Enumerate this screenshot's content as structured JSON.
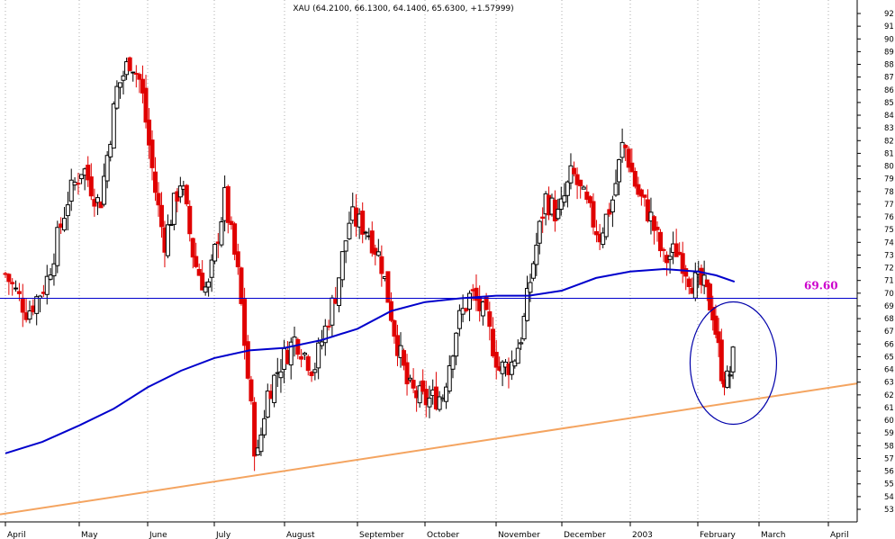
{
  "chart_data": {
    "type": "candlestick",
    "title": "XAU (64.2100, 66.1300, 64.1400, 65.6300, +1.57999)",
    "ylim": [
      52,
      93
    ],
    "y_ticks": [
      53,
      54,
      55,
      56,
      57,
      58,
      59,
      60,
      61,
      62,
      63,
      64,
      65,
      66,
      67,
      68,
      69,
      70,
      71,
      72,
      73,
      74,
      75,
      76,
      77,
      78,
      79,
      80,
      81,
      82,
      83,
      84,
      85,
      86,
      87,
      88,
      89,
      90,
      91,
      92
    ],
    "x_labels": [
      "April",
      "May",
      "June",
      "July",
      "August",
      "September",
      "October",
      "November",
      "December",
      "2003",
      "February",
      "March",
      "April"
    ],
    "grid": true,
    "colors": {
      "up_candle": "#000000",
      "down_candle": "#e00000",
      "moving_average": "#0000cc",
      "horizontal_line": "#0000cc",
      "trendline": "#f4a460",
      "level_label": "#cc00cc",
      "ellipse": "#0000aa",
      "grid": "#999999"
    },
    "horizontal_line": {
      "value": 69.6,
      "label": "69.60"
    },
    "trendline": {
      "from": {
        "x": "April",
        "y": 52.6
      },
      "to": {
        "x": "April",
        "y": 62.9
      }
    },
    "price_path": [
      {
        "m": 0,
        "v": 71.5
      },
      {
        "m": 0.3,
        "v": 68.5
      },
      {
        "m": 0.55,
        "v": 70.8
      },
      {
        "m": 0.85,
        "v": 77.5
      },
      {
        "m": 1.05,
        "v": 80.0
      },
      {
        "m": 1.3,
        "v": 76.8
      },
      {
        "m": 1.55,
        "v": 86.0
      },
      {
        "m": 1.75,
        "v": 88.5
      },
      {
        "m": 1.9,
        "v": 86.5
      },
      {
        "m": 2.1,
        "v": 78.5
      },
      {
        "m": 2.25,
        "v": 74.0
      },
      {
        "m": 2.5,
        "v": 79.0
      },
      {
        "m": 2.7,
        "v": 72.5
      },
      {
        "m": 2.9,
        "v": 70.0
      },
      {
        "m": 3.15,
        "v": 77.5
      },
      {
        "m": 3.35,
        "v": 71.0
      },
      {
        "m": 3.45,
        "v": 65.0
      },
      {
        "m": 3.6,
        "v": 56.5
      },
      {
        "m": 3.75,
        "v": 62.0
      },
      {
        "m": 3.95,
        "v": 64.5
      },
      {
        "m": 4.15,
        "v": 66.5
      },
      {
        "m": 4.4,
        "v": 64.0
      },
      {
        "m": 4.7,
        "v": 70.0
      },
      {
        "m": 4.9,
        "v": 76.0
      },
      {
        "m": 5.15,
        "v": 75.0
      },
      {
        "m": 5.35,
        "v": 72.5
      },
      {
        "m": 5.55,
        "v": 67.0
      },
      {
        "m": 5.75,
        "v": 62.5
      },
      {
        "m": 6.0,
        "v": 61.5
      },
      {
        "m": 6.25,
        "v": 62.0
      },
      {
        "m": 6.45,
        "v": 67.5
      },
      {
        "m": 6.65,
        "v": 70.0
      },
      {
        "m": 6.85,
        "v": 68.0
      },
      {
        "m": 7.05,
        "v": 64.0
      },
      {
        "m": 7.25,
        "v": 64.5
      },
      {
        "m": 7.4,
        "v": 67.0
      },
      {
        "m": 7.55,
        "v": 72.0
      },
      {
        "m": 7.75,
        "v": 77.5
      },
      {
        "m": 7.95,
        "v": 76.0
      },
      {
        "m": 8.15,
        "v": 79.5
      },
      {
        "m": 8.35,
        "v": 77.0
      },
      {
        "m": 8.55,
        "v": 74.5
      },
      {
        "m": 8.75,
        "v": 77.5
      },
      {
        "m": 8.9,
        "v": 82.0
      },
      {
        "m": 9.1,
        "v": 78.0
      },
      {
        "m": 9.3,
        "v": 76.0
      },
      {
        "m": 9.5,
        "v": 72.5
      },
      {
        "m": 9.7,
        "v": 73.5
      },
      {
        "m": 9.9,
        "v": 71.0
      },
      {
        "m": 10.1,
        "v": 70.5
      },
      {
        "m": 10.25,
        "v": 68.5
      },
      {
        "m": 10.4,
        "v": 63.5
      },
      {
        "m": 10.5,
        "v": 63.0
      },
      {
        "m": 10.6,
        "v": 65.6
      }
    ],
    "ma_path": [
      {
        "m": 0,
        "v": 57.4
      },
      {
        "m": 0.5,
        "v": 58.3
      },
      {
        "m": 1.0,
        "v": 59.6
      },
      {
        "m": 1.5,
        "v": 60.9
      },
      {
        "m": 2.0,
        "v": 62.6
      },
      {
        "m": 2.5,
        "v": 63.9
      },
      {
        "m": 3.0,
        "v": 64.9
      },
      {
        "m": 3.5,
        "v": 65.5
      },
      {
        "m": 4.0,
        "v": 65.7
      },
      {
        "m": 4.5,
        "v": 66.3
      },
      {
        "m": 5.0,
        "v": 67.2
      },
      {
        "m": 5.5,
        "v": 68.6
      },
      {
        "m": 6.0,
        "v": 69.3
      },
      {
        "m": 6.5,
        "v": 69.6
      },
      {
        "m": 7.0,
        "v": 69.8
      },
      {
        "m": 7.5,
        "v": 69.8
      },
      {
        "m": 8.0,
        "v": 70.2
      },
      {
        "m": 8.5,
        "v": 71.2
      },
      {
        "m": 9.0,
        "v": 71.7
      },
      {
        "m": 9.5,
        "v": 71.9
      },
      {
        "m": 10.0,
        "v": 71.7
      },
      {
        "m": 10.3,
        "v": 71.4
      },
      {
        "m": 10.6,
        "v": 70.9
      }
    ]
  }
}
